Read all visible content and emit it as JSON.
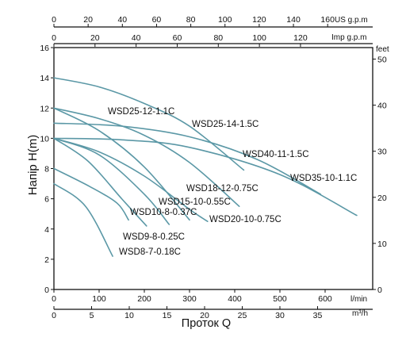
{
  "chart_data": {
    "type": "line",
    "title": "",
    "ylabel": "Напір H(m)",
    "xlabel": "Проток Q",
    "ylim": [
      0,
      16
    ],
    "xlim": [
      0,
      700
    ],
    "grid": false,
    "axes": {
      "left": {
        "unit": "",
        "ticks": [
          "0",
          "2",
          "4",
          "6",
          "8",
          "10",
          "12",
          "14",
          "16"
        ]
      },
      "right": {
        "unit": "feet",
        "ticks": [
          "0",
          "10",
          "20",
          "30",
          "40",
          "50"
        ]
      },
      "bottom": {
        "unit": "l/min",
        "ticks": [
          "0",
          "100",
          "200",
          "300",
          "400",
          "500",
          "600"
        ]
      },
      "bottom2": {
        "unit": "m³/h",
        "ticks": [
          "0",
          "5",
          "10",
          "15",
          "20",
          "25",
          "30",
          "35"
        ]
      },
      "top": {
        "unit": "US g.p.m",
        "ticks": [
          "0",
          "20",
          "40",
          "60",
          "80",
          "100",
          "120",
          "140",
          "160"
        ]
      },
      "top2": {
        "unit": "Imp g.p.m",
        "ticks": [
          "0",
          "20",
          "40",
          "60",
          "80",
          "100",
          "120"
        ]
      }
    },
    "series": [
      {
        "name": "WSD25-12-1.1C",
        "points": [
          [
            0,
            12
          ],
          [
            100,
            11.3
          ],
          [
            200,
            10.2
          ],
          [
            300,
            8.4
          ],
          [
            410,
            5.5
          ]
        ]
      },
      {
        "name": "WSD25-14-1.5C",
        "points": [
          [
            0,
            14
          ],
          [
            100,
            13.4
          ],
          [
            200,
            12.3
          ],
          [
            300,
            10.8
          ],
          [
            420,
            7.9
          ]
        ]
      },
      {
        "name": "WSD40-11-1.5C",
        "points": [
          [
            0,
            11
          ],
          [
            150,
            10.8
          ],
          [
            300,
            10.1
          ],
          [
            450,
            8.6
          ],
          [
            590,
            6.3
          ]
        ]
      },
      {
        "name": "WSD35-10-1.1C",
        "points": [
          [
            0,
            10
          ],
          [
            150,
            9.9
          ],
          [
            300,
            9.4
          ],
          [
            500,
            7.6
          ],
          [
            670,
            4.9
          ]
        ]
      },
      {
        "name": "WSD18-12-0.75C",
        "points": [
          [
            0,
            12
          ],
          [
            100,
            10.5
          ],
          [
            200,
            8.1
          ],
          [
            300,
            4.6
          ]
        ]
      },
      {
        "name": "WSD20-10-0.75C",
        "points": [
          [
            0,
            10
          ],
          [
            100,
            9.1
          ],
          [
            200,
            7.5
          ],
          [
            300,
            5.3
          ],
          [
            340,
            4.5
          ]
        ]
      },
      {
        "name": "WSD15-10-0.55C",
        "points": [
          [
            0,
            10
          ],
          [
            100,
            8.9
          ],
          [
            200,
            6.3
          ],
          [
            255,
            4.3
          ]
        ]
      },
      {
        "name": "WSD10-8-0.37C",
        "points": [
          [
            0,
            10
          ],
          [
            75,
            8.5
          ],
          [
            150,
            6.0
          ],
          [
            205,
            4.2
          ]
        ]
      },
      {
        "name": "WSD9-8-0.25C",
        "points": [
          [
            0,
            8
          ],
          [
            80,
            6.8
          ],
          [
            140,
            5.7
          ],
          [
            165,
            4.6
          ]
        ]
      },
      {
        "name": "WSD8-7-0.18C",
        "points": [
          [
            0,
            7.0
          ],
          [
            70,
            5.5
          ],
          [
            130,
            2.2
          ]
        ]
      }
    ]
  }
}
